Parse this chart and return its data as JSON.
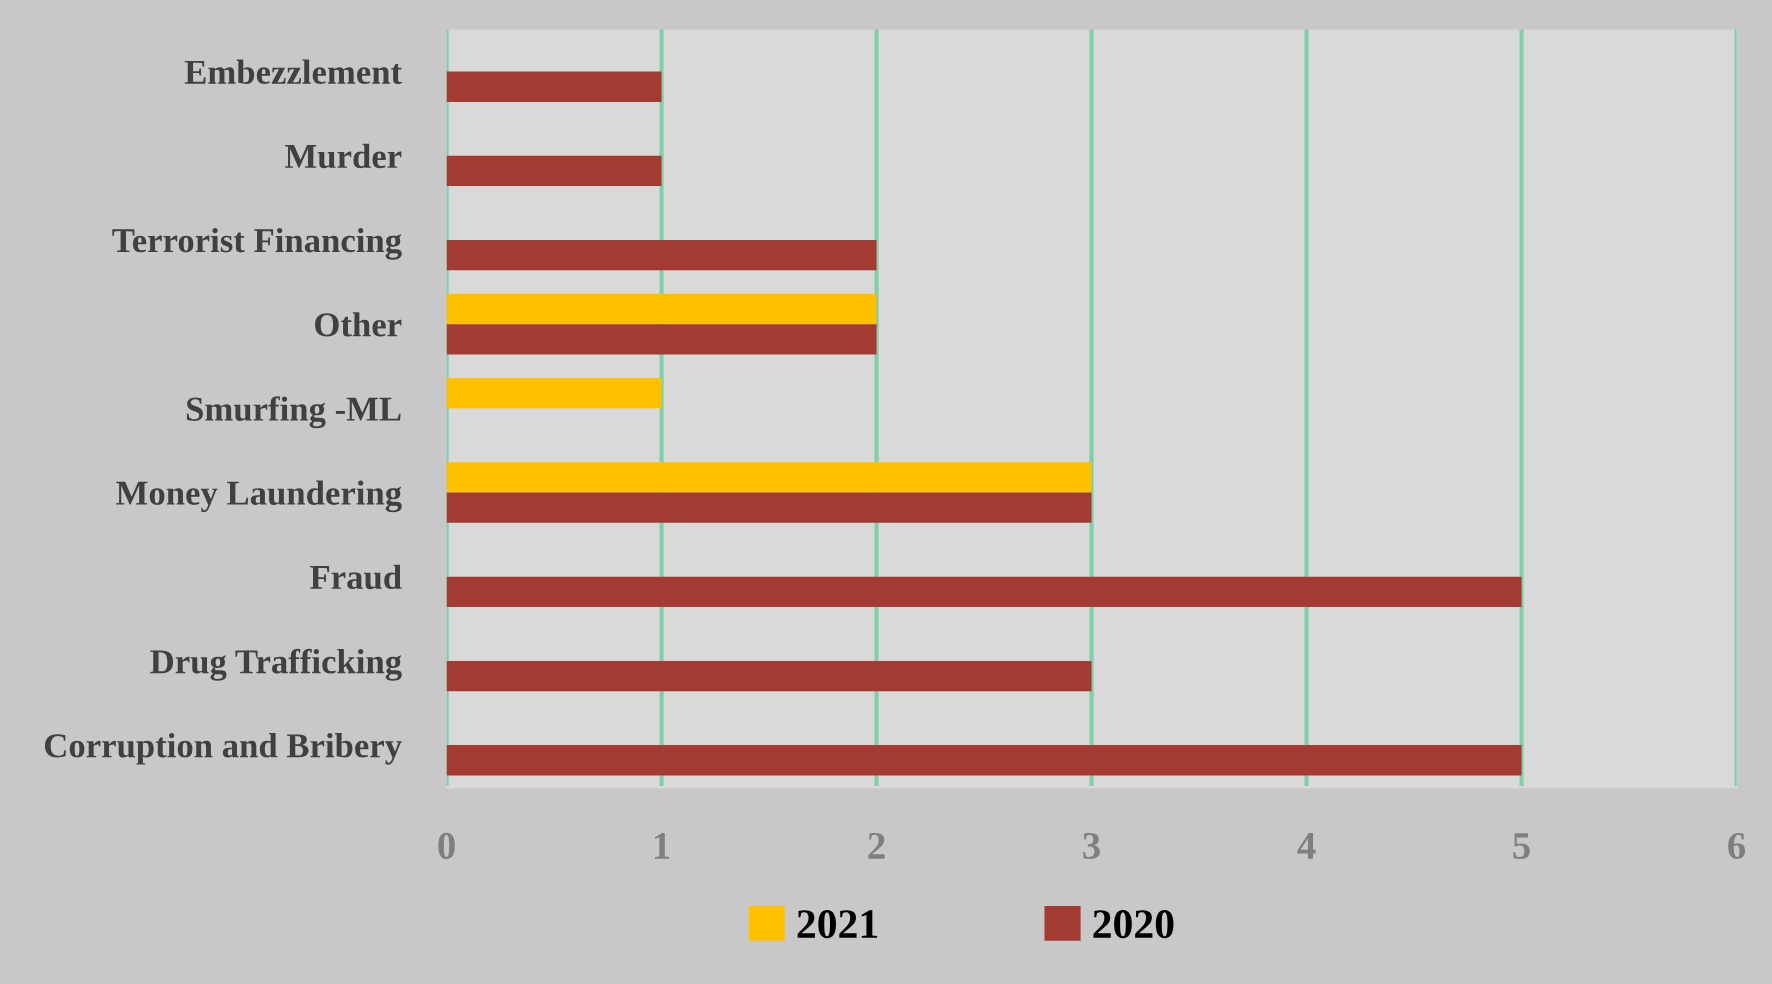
{
  "chart_data": {
    "type": "bar",
    "orientation": "horizontal",
    "categories": [
      "Embezzlement",
      "Murder",
      "Terrorist Financing",
      "Other",
      "Smurfing -ML",
      "Money Laundering",
      "Fraud",
      "Drug Trafficking",
      "Corruption and Bribery"
    ],
    "series": [
      {
        "name": "2021",
        "color": "#ffc000",
        "values": [
          null,
          null,
          null,
          2,
          1,
          3,
          null,
          null,
          null
        ]
      },
      {
        "name": "2020",
        "color": "#a33b33",
        "values": [
          1,
          1,
          2,
          2,
          null,
          3,
          5,
          3,
          5
        ]
      }
    ],
    "xlim": [
      0,
      6
    ],
    "xticks": [
      0,
      1,
      2,
      3,
      4,
      5,
      6
    ],
    "grid": "x",
    "legend": "bottom"
  }
}
